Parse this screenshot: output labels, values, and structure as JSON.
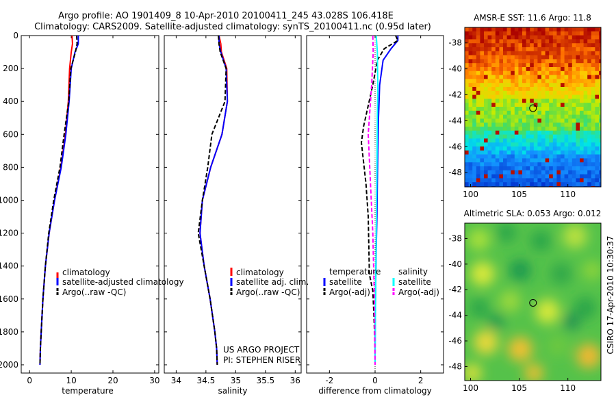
{
  "header": {
    "title_line1": "Argo profile: AO 1901409_8 10-Apr-2010 20100411_245 43.028S 106.418E",
    "title_line2": "Climatology: CARS2009. Satellite-adjusted climatology: synTS_20100411.nc (0.95d later)"
  },
  "side_label": "CSIRO 17-Apr-2010 10:30:37",
  "credit": {
    "line1": "US ARGO PROJECT",
    "line2": "PI: STEPHEN RISER"
  },
  "colors": {
    "climatology": "#ff0000",
    "satellite": "#0000ff",
    "argo": "#000000",
    "satellite_diff_sal": "#00ffff",
    "argo_diff_sal": "#ff00ff"
  },
  "chart_data": [
    {
      "type": "line",
      "xlabel": "temperature",
      "ylabel": "",
      "xlim": [
        -2,
        31
      ],
      "ylim": [
        2050,
        0
      ],
      "y_inverted": true,
      "xticks": [
        "0",
        "10",
        "20",
        "30"
      ],
      "yticks": [
        "0",
        "200",
        "400",
        "600",
        "800",
        "1000",
        "1200",
        "1400",
        "1600",
        "1800",
        "2000"
      ],
      "legend": [
        "climatology",
        "satellite-adjusted climatology",
        "Argo(..raw -QC)"
      ],
      "series": [
        {
          "name": "climatology",
          "color": "#ff0000",
          "style": "solid",
          "x": [
            10.2,
            10.3,
            10.0,
            9.6,
            9.3,
            8.6,
            7.5,
            6.0,
            4.7,
            3.8,
            3.2,
            2.8,
            2.6,
            2.5
          ],
          "y": [
            0,
            50,
            100,
            200,
            400,
            600,
            800,
            1000,
            1200,
            1400,
            1600,
            1800,
            1900,
            2000
          ]
        },
        {
          "name": "satellite-adjusted climatology",
          "color": "#0000ff",
          "style": "solid",
          "x": [
            11.7,
            11.7,
            10.9,
            10.0,
            9.5,
            8.7,
            7.6,
            6.0,
            4.7,
            3.8,
            3.2,
            2.8,
            2.6,
            2.5
          ],
          "y": [
            0,
            50,
            100,
            200,
            400,
            600,
            800,
            1000,
            1200,
            1400,
            1600,
            1800,
            1900,
            2000
          ]
        },
        {
          "name": "Argo(..raw -QC)",
          "color": "#000000",
          "style": "dashed",
          "x": [
            11.3,
            11.4,
            11.0,
            9.9,
            9.4,
            8.3,
            7.3,
            5.8,
            4.6,
            3.8,
            3.2,
            2.8,
            2.6,
            2.5
          ],
          "y": [
            0,
            50,
            100,
            200,
            400,
            600,
            800,
            1000,
            1200,
            1400,
            1600,
            1800,
            1900,
            2000
          ]
        }
      ]
    },
    {
      "type": "line",
      "xlabel": "salinity",
      "xlim": [
        33.8,
        36.1
      ],
      "ylim": [
        2050,
        0
      ],
      "y_inverted": true,
      "xticks": [
        "34",
        "34.5",
        "35",
        "35.5",
        "36"
      ],
      "legend": [
        "climatology",
        "satellite adj. clim.",
        "Argo(..raw -QC)"
      ],
      "series": [
        {
          "name": "climatology",
          "color": "#ff0000",
          "style": "solid",
          "x": [
            34.72,
            34.75,
            34.76,
            34.85,
            34.86,
            34.77,
            34.58,
            34.44,
            34.4,
            34.47,
            34.57,
            34.65,
            34.68,
            34.69
          ],
          "y": [
            0,
            50,
            100,
            200,
            400,
            600,
            800,
            1000,
            1200,
            1400,
            1600,
            1800,
            1900,
            2000
          ]
        },
        {
          "name": "satellite adj. clim.",
          "color": "#0000ff",
          "style": "solid",
          "x": [
            34.72,
            34.72,
            34.75,
            34.84,
            34.86,
            34.77,
            34.58,
            34.44,
            34.4,
            34.47,
            34.57,
            34.65,
            34.68,
            34.69
          ],
          "y": [
            0,
            50,
            100,
            200,
            400,
            600,
            800,
            1000,
            1200,
            1400,
            1600,
            1800,
            1900,
            2000
          ]
        },
        {
          "name": "Argo(..raw -QC)",
          "color": "#000000",
          "style": "dashed",
          "x": [
            34.71,
            34.72,
            34.74,
            34.84,
            34.82,
            34.6,
            34.53,
            34.44,
            34.37,
            34.47,
            34.57,
            34.65,
            34.68,
            34.69
          ],
          "y": [
            0,
            50,
            100,
            200,
            400,
            600,
            800,
            1000,
            1200,
            1400,
            1600,
            1800,
            1900,
            2000
          ]
        }
      ]
    },
    {
      "type": "line",
      "xlabel": "difference from climatology",
      "xlim": [
        -3,
        3
      ],
      "ylim": [
        2050,
        0
      ],
      "y_inverted": true,
      "xticks": [
        "-2",
        "0",
        "2"
      ],
      "legend_headers": [
        "temperature",
        "salinity"
      ],
      "legend": [
        "satellite",
        "Argo(-adj)",
        "satellite",
        "Argo(-adj)"
      ],
      "series": [
        {
          "name": "temperature satellite",
          "color": "#0000ff",
          "style": "solid",
          "x": [
            1.0,
            1.0,
            0.7,
            0.35,
            0.2,
            0.15,
            0.12,
            0.1,
            0.08,
            0.05,
            0.03,
            0.01,
            0.0,
            0.0
          ],
          "y": [
            0,
            30,
            80,
            150,
            300,
            500,
            700,
            900,
            1100,
            1300,
            1500,
            1700,
            1900,
            2000
          ]
        },
        {
          "name": "temperature Argo(-adj)",
          "color": "#000000",
          "style": "dashed",
          "x": [
            0.9,
            1.0,
            0.4,
            0.1,
            -0.1,
            -0.5,
            -0.6,
            -0.4,
            -0.3,
            -0.25,
            -0.1,
            -0.05,
            0.0,
            0.0
          ],
          "y": [
            0,
            30,
            80,
            150,
            300,
            550,
            650,
            900,
            1100,
            1450,
            1550,
            1700,
            1900,
            2000
          ]
        },
        {
          "name": "salinity satellite",
          "color": "#00ffff",
          "style": "solid",
          "x": [
            0.05,
            0.1,
            0.12,
            0.1,
            0.08,
            0.05,
            0.02,
            0.0
          ],
          "y": [
            0,
            100,
            300,
            500,
            800,
            1200,
            1600,
            2000
          ]
        },
        {
          "name": "salinity Argo(-adj)",
          "color": "#ff00ff",
          "style": "dashed",
          "x": [
            -0.1,
            -0.08,
            -0.15,
            -0.3,
            -0.2,
            -0.1,
            -0.03,
            0.0
          ],
          "y": [
            0,
            100,
            300,
            600,
            900,
            1200,
            1600,
            2000
          ]
        }
      ]
    },
    {
      "type": "heatmap",
      "title": "AMSR-E SST: 11.6 Argo: 11.8",
      "xlim": [
        99.4,
        113.4
      ],
      "ylim": [
        -49.1,
        -36.8
      ],
      "xticks": [
        "100",
        "105",
        "110"
      ],
      "yticks": [
        "-38",
        "-40",
        "-42",
        "-44",
        "-46",
        "-48"
      ],
      "marker": {
        "x": 106.418,
        "y": -43.028
      }
    },
    {
      "type": "heatmap",
      "title": "Altimetric SLA: 0.053 Argo: 0.012",
      "xlim": [
        99.4,
        113.4
      ],
      "ylim": [
        -49.1,
        -36.8
      ],
      "xticks": [
        "100",
        "105",
        "110"
      ],
      "yticks": [
        "-38",
        "-40",
        "-42",
        "-44",
        "-46",
        "-48"
      ],
      "marker": {
        "x": 106.418,
        "y": -43.028
      }
    }
  ]
}
